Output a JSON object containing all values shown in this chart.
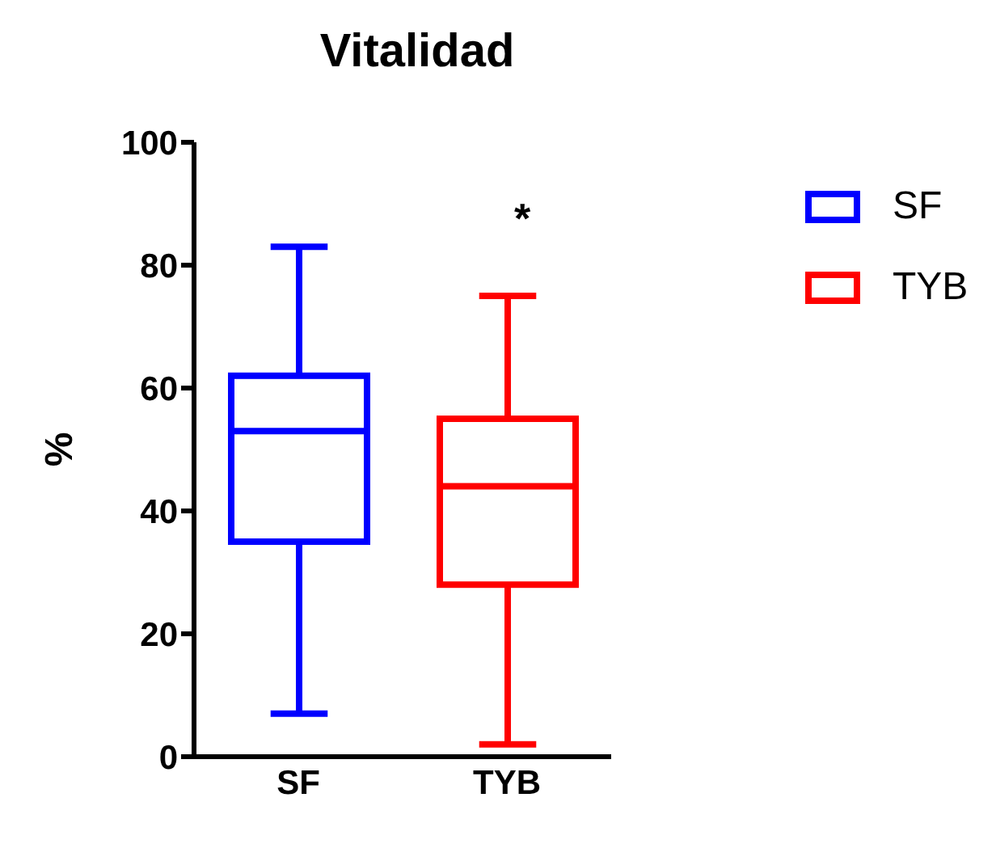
{
  "chart_data": {
    "type": "box",
    "title": "Vitalidad",
    "ylabel": "%",
    "categories": [
      "SF",
      "TYB"
    ],
    "series": [
      {
        "name": "SF",
        "color": "#0000ff",
        "boxes": [
          {
            "low": 7,
            "q1": 35,
            "median": 53,
            "q3": 62,
            "high": 83
          },
          null
        ]
      },
      {
        "name": "TYB",
        "color": "#ff0000",
        "boxes": [
          null,
          {
            "low": 2,
            "q1": 28,
            "median": 44,
            "q3": 55,
            "high": 75
          }
        ]
      }
    ],
    "ylim": [
      0,
      100
    ],
    "yticks": [
      0,
      20,
      40,
      60,
      80,
      100
    ],
    "grid": false,
    "legend": "top right",
    "annotations": [
      "*"
    ]
  }
}
